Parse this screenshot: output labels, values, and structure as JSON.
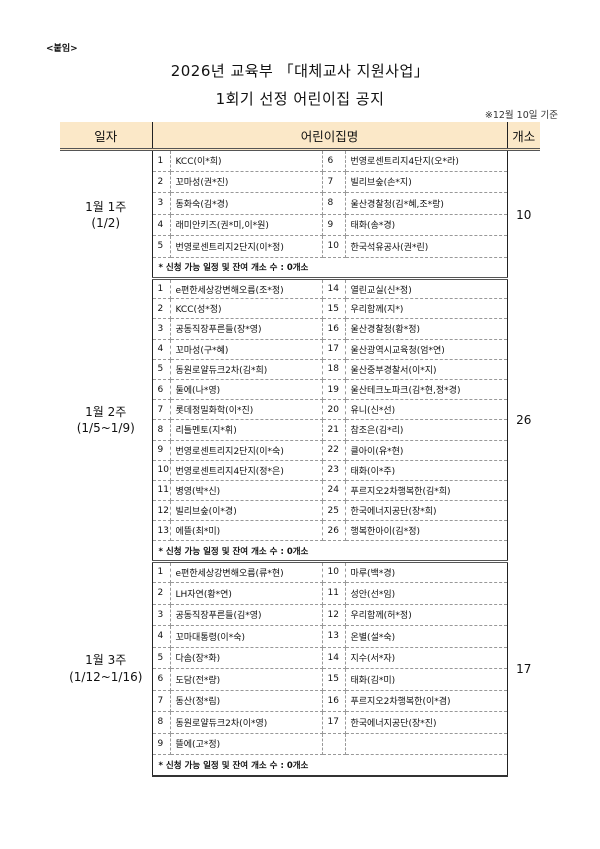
{
  "attachment_label": "<붙임>",
  "title_line1": "2026년 교육부 「대체교사 지원사업」",
  "title_line2": "1회기 선정 어린이집 공지",
  "basis_date": "※12월 10일 기준",
  "header": {
    "date": "일자",
    "name": "어린이집명",
    "count": "개소"
  },
  "colors": {
    "header_bg": "#FBE8C8"
  },
  "sections": [
    {
      "week": "1월 1주",
      "range": "(1/2)",
      "count": "10",
      "note": "* 신청 가능 일정 및 잔여 개소 수 : 0개소",
      "rows": [
        [
          {
            "n": "1",
            "name": "KCC(이*희)"
          },
          {
            "n": "6",
            "name": "번영로센트리지4단지(오*라)"
          }
        ],
        [
          {
            "n": "2",
            "name": "꼬마성(권*진)"
          },
          {
            "n": "7",
            "name": "빌리브숲(손*지)"
          }
        ],
        [
          {
            "n": "3",
            "name": "동화숙(김*경)"
          },
          {
            "n": "8",
            "name": "울산경찰청(김*혜,조*랑)"
          }
        ],
        [
          {
            "n": "4",
            "name": "래미안키즈(권*미,이*원)"
          },
          {
            "n": "9",
            "name": "태화(송*경)"
          }
        ],
        [
          {
            "n": "5",
            "name": "번영로센트리지2단지(이*정)"
          },
          {
            "n": "10",
            "name": "한국석유공사(권*린)"
          }
        ]
      ]
    },
    {
      "week": "1월 2주",
      "range": "(1/5~1/9)",
      "count": "26",
      "note": "* 신청 가능 일정 및 잔여 개소 수 : 0개소",
      "rows": [
        [
          {
            "n": "1",
            "name": "e편한세상강변해오름(조*정)"
          },
          {
            "n": "14",
            "name": "열린교실(신*정)"
          }
        ],
        [
          {
            "n": "2",
            "name": "KCC(성*정)"
          },
          {
            "n": "15",
            "name": "우리함께(지*)"
          }
        ],
        [
          {
            "n": "3",
            "name": "공동직장푸른들(장*영)"
          },
          {
            "n": "16",
            "name": "울산경찰청(황*정)"
          }
        ],
        [
          {
            "n": "4",
            "name": "꼬마성(구*혜)"
          },
          {
            "n": "17",
            "name": "울산광역시교육청(엄*연)"
          }
        ],
        [
          {
            "n": "5",
            "name": "동원로얄듀크2차(김*희)"
          },
          {
            "n": "18",
            "name": "울산중부경찰서(이*지)"
          }
        ],
        [
          {
            "n": "6",
            "name": "둘에(나*영)"
          },
          {
            "n": "19",
            "name": "울산테크노파크(김*현,정*경)"
          }
        ],
        [
          {
            "n": "7",
            "name": "롯데정밀화학(이*진)"
          },
          {
            "n": "20",
            "name": "유니(신*선)"
          }
        ],
        [
          {
            "n": "8",
            "name": "리틀멘토(지*휘)"
          },
          {
            "n": "21",
            "name": "참조은(김*리)"
          }
        ],
        [
          {
            "n": "9",
            "name": "번영로센트리지2단지(이*숙)"
          },
          {
            "n": "22",
            "name": "클아이(유*현)"
          }
        ],
        [
          {
            "n": "10",
            "name": "번영로센트리지4단지(정*은)"
          },
          {
            "n": "23",
            "name": "태화(이*주)"
          }
        ],
        [
          {
            "n": "11",
            "name": "병영(박*신)"
          },
          {
            "n": "24",
            "name": "푸르지오2차행복한(김*희)"
          }
        ],
        [
          {
            "n": "12",
            "name": "빌리브숲(이*경)"
          },
          {
            "n": "25",
            "name": "한국에너지공단(장*희)"
          }
        ],
        [
          {
            "n": "13",
            "name": "에뜰(최*미)"
          },
          {
            "n": "26",
            "name": "행복한아이(김*정)"
          }
        ]
      ]
    },
    {
      "week": "1월 3주",
      "range": "(1/12~1/16)",
      "count": "17",
      "note": "* 신청 가능 일정 및 잔여 개소 수 : 0개소",
      "rows": [
        [
          {
            "n": "1",
            "name": "e편한세상강변해오름(류*현)"
          },
          {
            "n": "10",
            "name": "마루(백*경)"
          }
        ],
        [
          {
            "n": "2",
            "name": "LH자연(황*연)"
          },
          {
            "n": "11",
            "name": "성안(선*임)"
          }
        ],
        [
          {
            "n": "3",
            "name": "공동직장푸른들(김*영)"
          },
          {
            "n": "12",
            "name": "우리함께(허*정)"
          }
        ],
        [
          {
            "n": "4",
            "name": "꼬마대통령(이*숙)"
          },
          {
            "n": "13",
            "name": "온별(설*숙)"
          }
        ],
        [
          {
            "n": "5",
            "name": "다솜(장*화)"
          },
          {
            "n": "14",
            "name": "지수(서*자)"
          }
        ],
        [
          {
            "n": "6",
            "name": "도담(전*량)"
          },
          {
            "n": "15",
            "name": "태화(김*미)"
          }
        ],
        [
          {
            "n": "7",
            "name": "동산(정*림)"
          },
          {
            "n": "16",
            "name": "푸르지오2차행복한(이*겸)"
          }
        ],
        [
          {
            "n": "8",
            "name": "동원로얄듀크2차(이*영)"
          },
          {
            "n": "17",
            "name": "한국에너지공단(장*진)"
          }
        ],
        [
          {
            "n": "9",
            "name": "뜰에(고*정)"
          },
          {
            "n": "",
            "name": ""
          }
        ]
      ]
    }
  ]
}
